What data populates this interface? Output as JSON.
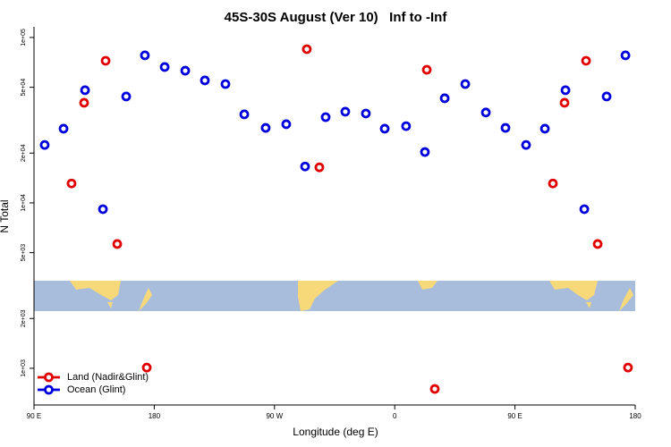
{
  "chart_data": {
    "type": "scatter",
    "title": "45S-30S August (Ver 10)   Inf to -Inf",
    "x_label": "Longitude (deg E)",
    "y_label": "N Total",
    "log_y": true,
    "legend": "bottom-left",
    "xlim": [
      90,
      540
    ],
    "xticks": [
      {
        "value": 90,
        "label": "90 E"
      },
      {
        "value": 180,
        "label": "180"
      },
      {
        "value": 270,
        "label": "90 W"
      },
      {
        "value": 360,
        "label": "0"
      },
      {
        "value": 450,
        "label": "90 E"
      },
      {
        "value": 540,
        "label": "180"
      }
    ],
    "ylim": [
      600,
      116000
    ],
    "yticks": [
      {
        "value": 1000,
        "label": "1e+03"
      },
      {
        "value": 2000,
        "label": "2e+03"
      },
      {
        "value": 5000,
        "label": "5e+03"
      },
      {
        "value": 10000,
        "label": "1e+04"
      },
      {
        "value": 20000,
        "label": "2e+04"
      },
      {
        "value": 50000,
        "label": "5e+04"
      },
      {
        "value": 100000,
        "label": "1e+05"
      }
    ],
    "series": [
      {
        "name": "Land (Nadir&Glint)",
        "color": "#e00000",
        "x": [
          118.1,
          127.5,
          143.6,
          152.3,
          174.4,
          294.2,
          303.6,
          384.0,
          390.0,
          478.4,
          487.1,
          503.2,
          511.9,
          534.6
        ],
        "values": [
          13100,
          40300,
          72300,
          5640,
          1010,
          85000,
          16400,
          63800,
          750,
          13100,
          40300,
          72300,
          5640,
          1010
        ]
      },
      {
        "name": "Ocean (Glint)",
        "color": "#0000dd",
        "x": [
          98.0,
          112.1,
          128.2,
          141.6,
          159.0,
          173.0,
          187.8,
          203.2,
          217.9,
          233.3,
          247.4,
          263.4,
          278.8,
          292.9,
          308.3,
          323.0,
          338.4,
          352.5,
          368.5,
          382.6,
          397.4,
          412.8,
          428.2,
          442.9,
          458.3,
          472.4,
          487.8,
          501.9,
          518.6,
          532.7
        ],
        "values": [
          22400,
          28100,
          48000,
          9160,
          44000,
          78000,
          66300,
          63000,
          55000,
          52300,
          34300,
          28400,
          29900,
          16600,
          33000,
          35600,
          34700,
          28100,
          29100,
          20300,
          42900,
          52300,
          35200,
          28400,
          22400,
          28100,
          48000,
          9160,
          44000,
          78000
        ]
      }
    ]
  }
}
